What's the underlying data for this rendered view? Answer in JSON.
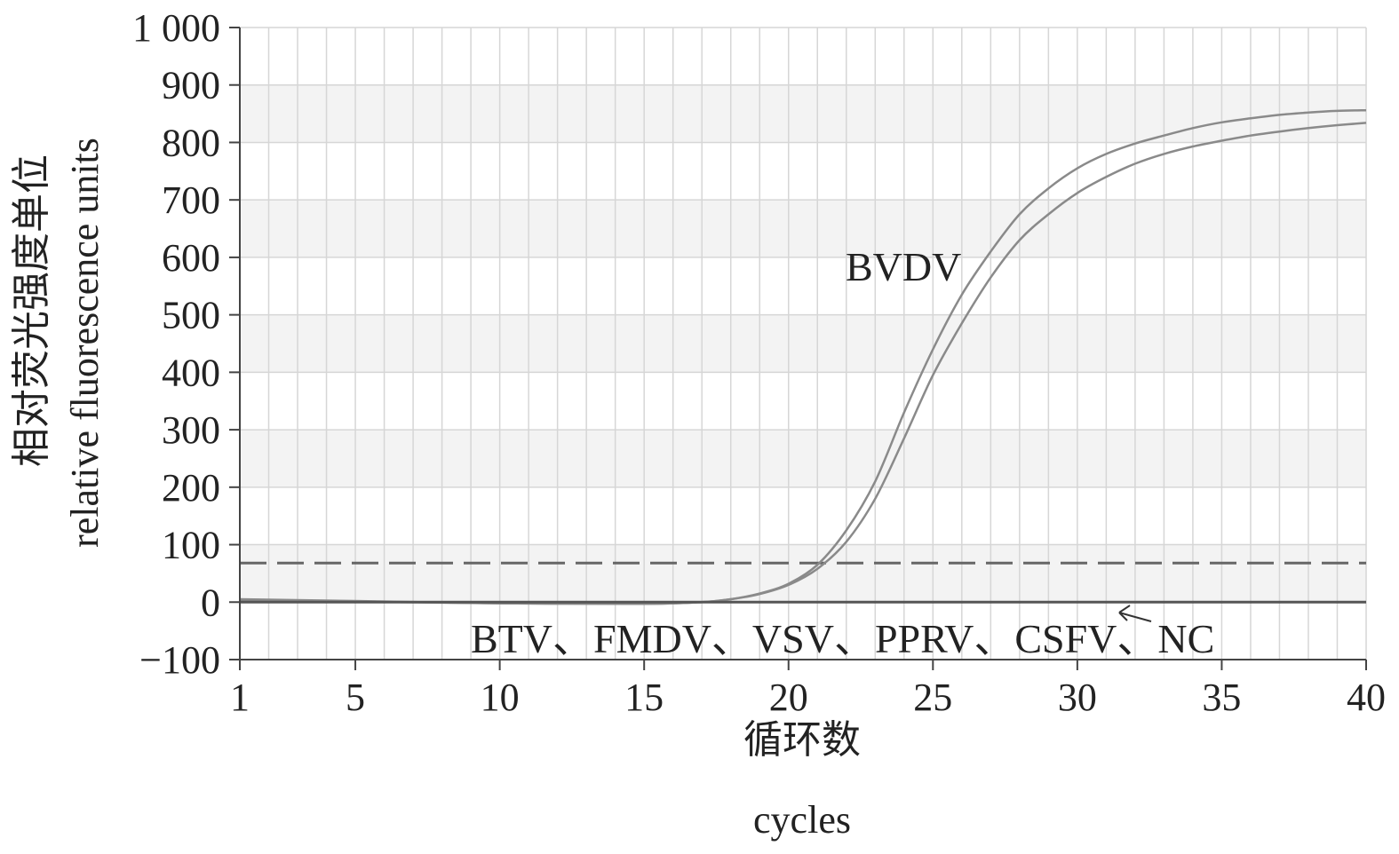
{
  "chart_data": {
    "type": "line",
    "xlabel_zh": "循环数",
    "xlabel_en": "cycles",
    "ylabel_zh": "相对荧光强度单位",
    "ylabel_en": "relative fluorescence units",
    "xlim": [
      1,
      40
    ],
    "ylim": [
      -100,
      1000
    ],
    "x_ticks": [
      1,
      5,
      10,
      15,
      20,
      25,
      30,
      35,
      40
    ],
    "x_tick_labels": [
      "1",
      "5",
      "10",
      "15",
      "20",
      "25",
      "30",
      "35",
      "40"
    ],
    "y_ticks": [
      -100,
      0,
      100,
      200,
      300,
      400,
      500,
      600,
      700,
      800,
      900,
      1000
    ],
    "y_tick_labels": [
      "−100",
      "0",
      "100",
      "200",
      "300",
      "400",
      "500",
      "600",
      "700",
      "800",
      "900",
      "1 000"
    ],
    "grid": true,
    "threshold": 68,
    "series": [
      {
        "name": "BVDV",
        "x": [
          1,
          5,
          10,
          15,
          17,
          18,
          19,
          20,
          21,
          22,
          23,
          24,
          25,
          26,
          27,
          28,
          29,
          30,
          31,
          32,
          33,
          34,
          35,
          36,
          37,
          38,
          39,
          40
        ],
        "values": [
          5,
          2,
          -2,
          -3,
          0,
          5,
          15,
          32,
          65,
          125,
          210,
          330,
          440,
          535,
          610,
          675,
          720,
          755,
          780,
          798,
          812,
          825,
          835,
          842,
          848,
          852,
          855,
          856
        ]
      },
      {
        "name": "BVDV",
        "x": [
          1,
          5,
          10,
          15,
          17,
          18,
          19,
          20,
          21,
          22,
          23,
          24,
          25,
          26,
          27,
          28,
          29,
          30,
          31,
          32,
          33,
          34,
          35,
          36,
          37,
          38,
          39,
          40
        ],
        "values": [
          3,
          1,
          -2,
          -3,
          0,
          5,
          14,
          30,
          58,
          105,
          180,
          285,
          395,
          485,
          565,
          630,
          675,
          712,
          740,
          763,
          780,
          793,
          803,
          812,
          819,
          825,
          830,
          834
        ]
      },
      {
        "name": "BTV、FMDV、VSV、PPRV、CSFV、NC",
        "x": [
          1,
          40
        ],
        "values": [
          0,
          0
        ]
      }
    ],
    "annotations": {
      "positive": "BVDV",
      "negative": "BTV、FMDV、VSV、PPRV、CSFV、NC"
    }
  }
}
